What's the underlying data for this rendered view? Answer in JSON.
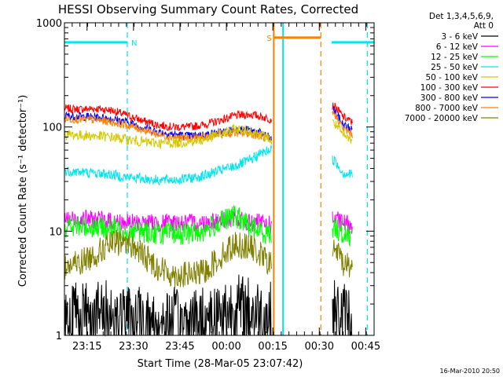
{
  "chart_data": {
    "type": "line",
    "title": "HESSI Observing Summary Count Rates, Corrected",
    "xlabel": "Start Time (28-Mar-05 23:07:42)",
    "ylabel": "Corrected Count Rate (s⁻¹ detector⁻¹)",
    "x_unit": "minutes after 23:07:42",
    "xlim": [
      0,
      100
    ],
    "ylim": [
      1,
      1000
    ],
    "y_scale": "log",
    "x_ticks": [
      {
        "at": 7.3,
        "label": "23:15"
      },
      {
        "at": 22.3,
        "label": "23:30"
      },
      {
        "at": 37.3,
        "label": "23:45"
      },
      {
        "at": 52.3,
        "label": "00:00"
      },
      {
        "at": 67.3,
        "label": "00:15"
      },
      {
        "at": 82.3,
        "label": "00:30"
      },
      {
        "at": 97.3,
        "label": "00:45"
      }
    ],
    "y_ticks": [
      {
        "at": 1,
        "label": "1"
      },
      {
        "at": 10,
        "label": "10"
      },
      {
        "at": 100,
        "label": "100"
      },
      {
        "at": 1000,
        "label": "1000"
      }
    ],
    "legend": {
      "placement": "right",
      "header": [
        "Det 1,3,4,5,6,9,",
        "Att 0"
      ],
      "entries": [
        {
          "label": "3 - 6 keV",
          "color": "#000000"
        },
        {
          "label": "6 - 12 keV",
          "color": "#ff00ff"
        },
        {
          "label": "12 - 25 keV",
          "color": "#00ff00"
        },
        {
          "label": "25 - 50 keV",
          "color": "#00e5ee"
        },
        {
          "label": "50 - 100 keV",
          "color": "#d4c800"
        },
        {
          "label": "100 - 300 keV",
          "color": "#ff0000"
        },
        {
          "label": "300 - 800 keV",
          "color": "#0000ff"
        },
        {
          "label": "800 - 7000 keV",
          "color": "#ff8000"
        },
        {
          "label": "7000 - 20000 keV",
          "color": "#808000"
        }
      ]
    },
    "gaps": [
      [
        67,
        86.5
      ]
    ],
    "series": [
      {
        "name": "100 - 300 keV",
        "color": "#ff0000",
        "noise": 0.04,
        "x": [
          0,
          5,
          10,
          15,
          20,
          25,
          30,
          35,
          40,
          45,
          50,
          55,
          60,
          63,
          66,
          67,
          87,
          90,
          93
        ],
        "y": [
          150,
          148,
          150,
          145,
          130,
          115,
          105,
          100,
          100,
          105,
          115,
          128,
          132,
          127,
          120,
          118,
          160,
          125,
          110
        ]
      },
      {
        "name": "300 - 800 keV",
        "color": "#0000ff",
        "noise": 0.04,
        "x": [
          0,
          5,
          10,
          15,
          20,
          25,
          30,
          35,
          40,
          45,
          50,
          55,
          60,
          63,
          66,
          67,
          87,
          90,
          93
        ],
        "y": [
          128,
          126,
          125,
          120,
          112,
          100,
          90,
          85,
          82,
          84,
          88,
          95,
          93,
          88,
          80,
          74,
          145,
          105,
          95
        ]
      },
      {
        "name": "800 - 7000 keV",
        "color": "#ff8000",
        "noise": 0.04,
        "x": [
          0,
          5,
          10,
          15,
          20,
          25,
          30,
          35,
          40,
          45,
          50,
          55,
          60,
          63,
          66,
          67,
          87,
          90,
          93
        ],
        "y": [
          120,
          118,
          117,
          112,
          104,
          95,
          85,
          80,
          78,
          80,
          84,
          88,
          86,
          82,
          76,
          70,
          135,
          96,
          85
        ]
      },
      {
        "name": "50 - 100 keV",
        "color": "#d4c800",
        "noise": 0.05,
        "x": [
          0,
          5,
          10,
          15,
          20,
          25,
          30,
          35,
          40,
          45,
          50,
          55,
          60,
          63,
          66,
          67,
          87,
          90,
          93
        ],
        "y": [
          85,
          83,
          82,
          80,
          76,
          72,
          70,
          70,
          72,
          75,
          85,
          95,
          92,
          85,
          78,
          70,
          110,
          82,
          75
        ]
      },
      {
        "name": "25 - 50 keV",
        "color": "#00e5ee",
        "noise": 0.05,
        "x": [
          0,
          5,
          10,
          15,
          20,
          25,
          30,
          35,
          40,
          45,
          50,
          55,
          60,
          63,
          66,
          67,
          87,
          90,
          93
        ],
        "y": [
          38,
          37,
          36,
          35,
          33,
          32,
          31,
          31,
          32,
          34,
          38,
          42,
          48,
          55,
          60,
          62,
          48,
          36,
          35
        ]
      },
      {
        "name": "6 - 12 keV",
        "color": "#ff00ff",
        "noise": 0.09,
        "x": [
          0,
          5,
          10,
          15,
          20,
          25,
          30,
          35,
          40,
          45,
          50,
          55,
          60,
          63,
          66,
          67,
          87,
          90,
          93
        ],
        "y": [
          13,
          13,
          13,
          12.5,
          12,
          12,
          12,
          12,
          12,
          12,
          13,
          13,
          12,
          12,
          11.5,
          11,
          13,
          12,
          11.5
        ]
      },
      {
        "name": "12 - 25 keV",
        "color": "#00ff00",
        "noise": 0.11,
        "x": [
          0,
          5,
          10,
          15,
          20,
          25,
          30,
          35,
          40,
          45,
          50,
          55,
          60,
          63,
          66,
          67,
          87,
          90,
          93
        ],
        "y": [
          11,
          11,
          11,
          10.5,
          10,
          10,
          9.5,
          9.5,
          9.5,
          10,
          12,
          14,
          11,
          10,
          9.5,
          9,
          11,
          9.5,
          9
        ]
      },
      {
        "name": "7000 - 20000 keV",
        "color": "#808000",
        "noise": 0.13,
        "x": [
          0,
          5,
          10,
          15,
          20,
          25,
          30,
          35,
          40,
          45,
          50,
          55,
          60,
          63,
          66,
          67,
          87,
          90,
          93
        ],
        "y": [
          4.5,
          5,
          6,
          7.5,
          8,
          6,
          4.5,
          3.8,
          3.8,
          4,
          5.5,
          7.5,
          7,
          6,
          5,
          4.5,
          7,
          5,
          4.5
        ]
      },
      {
        "name": "3 - 6 keV",
        "color": "#000000",
        "noise": 0.35,
        "x": [
          0,
          5,
          10,
          15,
          20,
          25,
          30,
          35,
          40,
          45,
          50,
          55,
          60,
          63,
          66,
          67,
          87,
          90,
          93
        ],
        "y": [
          1.6,
          1.6,
          1.6,
          1.5,
          1.4,
          1.3,
          1.3,
          1.3,
          1.3,
          1.4,
          1.6,
          1.8,
          1.7,
          1.6,
          1.5,
          1.5,
          1.6,
          1.5,
          1.5
        ]
      }
    ],
    "flag_bars": [
      {
        "label": "N",
        "color": "#00e5ee",
        "x_start": 0,
        "x_end": 20.3,
        "y": 650
      },
      {
        "label": "S",
        "color": "#ff8000",
        "x_start": 67.7,
        "x_end": 82.8,
        "y": 720
      },
      {
        "label": "",
        "color": "#00e5ee",
        "x_start": 86.3,
        "x_end": 100,
        "y": 650
      }
    ],
    "vertical_lines": [
      {
        "x": 20.3,
        "color": "#00e5ee",
        "style": "dashed"
      },
      {
        "x": 67.6,
        "color": "#ff8000",
        "style": "solid"
      },
      {
        "x": 70.6,
        "color": "#00e5ee",
        "style": "solid"
      },
      {
        "x": 82.8,
        "color": "#ff8000",
        "style": "dashed"
      },
      {
        "x": 97.8,
        "color": "#00e5ee",
        "style": "dashed"
      }
    ],
    "footer": "16-Mar-2010 20:50"
  }
}
